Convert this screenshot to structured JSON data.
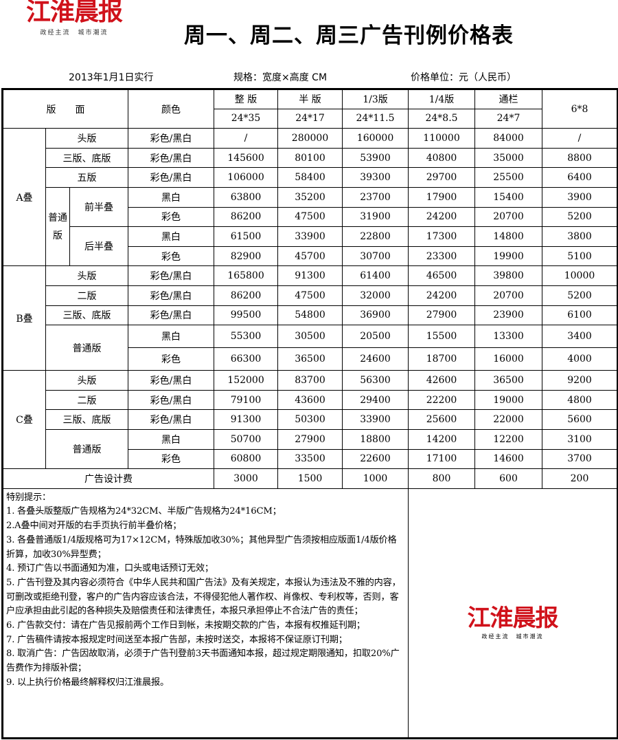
{
  "logo": {
    "name": "江淮晨报",
    "tagline": "政经主流　城市潮流"
  },
  "title": "周一、周二、周三广告刊例价格表",
  "effective": "2013年1月1日实行",
  "spec": "规格：宽度×高度 CM",
  "unit": "价格单位：元（人民币）",
  "header": {
    "section": "版　　面",
    "color": "颜色",
    "cols": [
      {
        "name": "整 版",
        "size": "24*35"
      },
      {
        "name": "半 版",
        "size": "24*17"
      },
      {
        "name": "1/3版",
        "size": "24*11.5"
      },
      {
        "name": "1/4版",
        "size": "24*8.5"
      },
      {
        "name": "通栏",
        "size": "24*7"
      },
      {
        "name": "6*8",
        "size": ""
      }
    ]
  },
  "A": {
    "name": "A叠",
    "group": "普通版",
    "front": "前半叠",
    "back": "后半叠",
    "rows": [
      {
        "page": "头版",
        "color": "彩色/黑白",
        "prices": [
          "/",
          "280000",
          "160000",
          "110000",
          "84000",
          "/"
        ]
      },
      {
        "page": "三版、底版",
        "color": "彩色/黑白",
        "prices": [
          "145600",
          "80100",
          "53900",
          "40800",
          "35000",
          "8800"
        ]
      },
      {
        "page": "五版",
        "color": "彩色/黑白",
        "prices": [
          "106000",
          "58400",
          "39300",
          "29700",
          "25500",
          "6400"
        ]
      },
      {
        "color": "黑白",
        "prices": [
          "63800",
          "35200",
          "23700",
          "17900",
          "15400",
          "3900"
        ]
      },
      {
        "color": "彩色",
        "prices": [
          "86200",
          "47500",
          "31900",
          "24200",
          "20700",
          "5200"
        ]
      },
      {
        "color": "黑白",
        "prices": [
          "61500",
          "33900",
          "22800",
          "17300",
          "14800",
          "3800"
        ]
      },
      {
        "color": "彩色",
        "prices": [
          "82900",
          "45700",
          "30700",
          "23300",
          "19900",
          "5100"
        ]
      }
    ]
  },
  "B": {
    "name": "B叠",
    "group": "普通版",
    "rows": [
      {
        "page": "头版",
        "color": "彩色/黑白",
        "prices": [
          "165800",
          "91300",
          "61400",
          "46500",
          "39800",
          "10000"
        ]
      },
      {
        "page": "二版",
        "color": "彩色/黑白",
        "prices": [
          "86200",
          "47500",
          "32000",
          "24200",
          "20700",
          "5200"
        ]
      },
      {
        "page": "三版、底版",
        "color": "彩色/黑白",
        "prices": [
          "99500",
          "54800",
          "36900",
          "27900",
          "23900",
          "6100"
        ]
      },
      {
        "color": "黑白",
        "prices": [
          "55300",
          "30500",
          "20500",
          "15500",
          "13300",
          "3400"
        ]
      },
      {
        "color": "彩色",
        "prices": [
          "66300",
          "36500",
          "24600",
          "18700",
          "16000",
          "4000"
        ]
      }
    ]
  },
  "C": {
    "name": "C叠",
    "group": "普通版",
    "rows": [
      {
        "page": "头版",
        "color": "彩色/黑白",
        "prices": [
          "152000",
          "83700",
          "56300",
          "42600",
          "36500",
          "9200"
        ]
      },
      {
        "page": "二版",
        "color": "彩色/黑白",
        "prices": [
          "79100",
          "43600",
          "29400",
          "22200",
          "19000",
          "4800"
        ]
      },
      {
        "page": "三版、底版",
        "color": "彩色/黑白",
        "prices": [
          "91300",
          "50300",
          "33900",
          "25600",
          "22000",
          "5600"
        ]
      },
      {
        "color": "黑白",
        "prices": [
          "50700",
          "27900",
          "18800",
          "14200",
          "12200",
          "3100"
        ]
      },
      {
        "color": "彩色",
        "prices": [
          "60800",
          "33500",
          "22600",
          "17100",
          "14600",
          "3700"
        ]
      }
    ]
  },
  "design": {
    "label": "广告设计费",
    "prices": [
      "3000",
      "1500",
      "1000",
      "800",
      "600",
      "200"
    ]
  },
  "notes": [
    "特别提示：",
    "1. 各叠头版整版广告规格为24*32CM、半版广告规格为24*16CM；",
    "2.A叠中间对开版的右手页执行前半叠价格；",
    "3. 各叠普通版1/4版规格可为17×12CM，特殊版加收30%；其他异型广告须按相应版面1/4版价格折算，加收30%异型费；",
    "4. 预订广告以书面通知为准，口头或电话预订无效；",
    "5. 广告刊登及其内容必须符合《中华人民共和国广告法》及有关规定，本报认为违法及不雅的内容，可删改或拒绝刊登，客户的广告内容应该合法，不得侵犯他人著作权、肖像权、专利权等，否则，客户应承担由此引起的各种损失及赔偿责任和法律责任，本报只承担停止不合法广告的责任；",
    "6. 广告款交付：请在广告见报前两个工作日到帐，未按期交款的广告，本报有权推延刊期；",
    "7. 广告稿件请按本报规定时间送至本报广告部，未按时送交，本报将不保证原订刊期；",
    "8. 取消广告：广告因故取消，必须于广告刊登前3天书面通知本报，超过规定期限通知，扣取20%广告费作为排版补偿；",
    "9. 以上执行价格最终解释权归江淮晨报。"
  ]
}
